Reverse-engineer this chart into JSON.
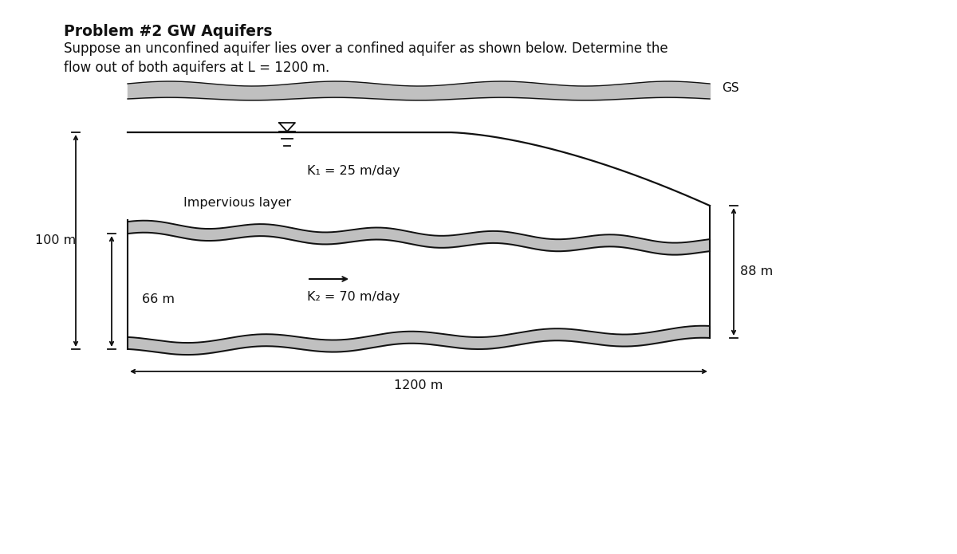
{
  "title_line1": "Problem #2 GW Aquifers",
  "title_line2": "Suppose an unconfined aquifer lies over a confined aquifer as shown below. Determine the",
  "title_line3": "flow out of both aquifers at L = 1200 m.",
  "bg_color": "#ffffff",
  "gray_fill": "#c0c0c0",
  "dark_line": "#111111",
  "text_color": "#111111",
  "k1_label": "K₁ = 25 m/day",
  "k2_label": "K₂ = 70 m/day",
  "impervious_label": "Impervious layer",
  "label_100m": "100 m",
  "label_88m": "88 m",
  "label_66m": "66 m",
  "label_1200m": "1200 m",
  "gs_label": "GS"
}
